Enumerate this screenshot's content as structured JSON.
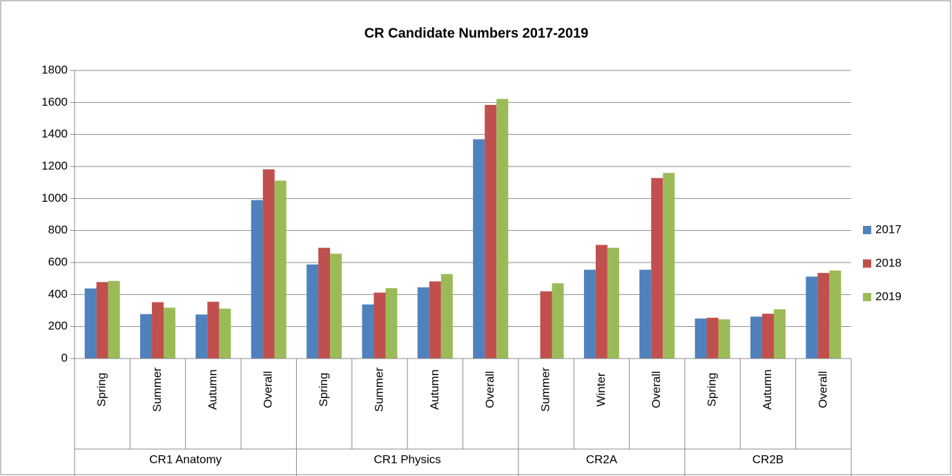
{
  "chart_data": {
    "type": "bar",
    "title": "CR Candidate Numbers 2017-2019",
    "groups": [
      {
        "name": "CR1 Anatomy",
        "categories": [
          "Spring",
          "Summer",
          "Autumn",
          "Overall"
        ]
      },
      {
        "name": "CR1 Physics",
        "categories": [
          "Spring",
          "Summer",
          "Autumn",
          "Overall"
        ]
      },
      {
        "name": "CR2A",
        "categories": [
          "Summer",
          "Winter",
          "Overall"
        ]
      },
      {
        "name": "CR2B",
        "categories": [
          "Spring",
          "Autumn",
          "Overall"
        ]
      }
    ],
    "series": [
      {
        "name": "2017",
        "color": "#4f81bd",
        "values": [
          438,
          278,
          275,
          990,
          588,
          338,
          445,
          1370,
          null,
          555,
          555,
          250,
          262,
          512
        ]
      },
      {
        "name": "2018",
        "color": "#c0504d",
        "values": [
          478,
          352,
          355,
          1182,
          692,
          412,
          482,
          1585,
          420,
          710,
          1128,
          255,
          280,
          535
        ]
      },
      {
        "name": "2019",
        "color": "#9bbb59",
        "values": [
          485,
          318,
          312,
          1112,
          655,
          440,
          528,
          1622,
          470,
          692,
          1160,
          245,
          308,
          550
        ]
      }
    ],
    "ylim": [
      0,
      1800
    ],
    "yticks": [
      0,
      200,
      400,
      600,
      800,
      1000,
      1200,
      1400,
      1600,
      1800
    ],
    "grid": true,
    "legend": "right"
  }
}
